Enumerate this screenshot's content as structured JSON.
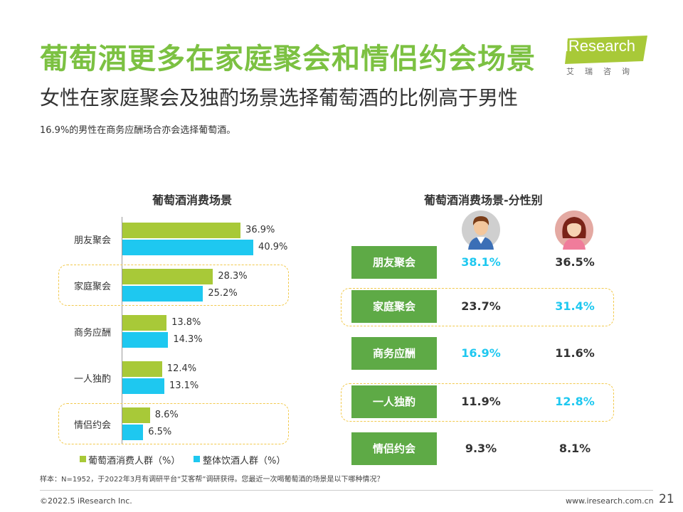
{
  "header": {
    "title": "葡萄酒更多在家庭聚会和情侣约会场景",
    "subtitle": "女性在家庭聚会及独酌场景选择葡萄酒的比例高于男性",
    "note": "16.9%的男性在商务应酬场合亦会选择葡萄酒。"
  },
  "logo": {
    "brand": "iResearch",
    "sub": "艾瑞咨询"
  },
  "colors": {
    "title_green": "#7cc142",
    "bar_green": "#a8c938",
    "bar_blue": "#1ec8f0",
    "box_green": "#5eaa46",
    "highlight": "#1ec8f0",
    "dash": "#f2c94c"
  },
  "chart_data": [
    {
      "type": "bar",
      "orientation": "horizontal",
      "title": "葡萄酒消费场景",
      "categories": [
        "朋友聚会",
        "家庭聚会",
        "商务应酬",
        "一人独酌",
        "情侣约会"
      ],
      "series": [
        {
          "name": "葡萄酒消费人群（%）",
          "values": [
            36.9,
            28.3,
            13.8,
            12.4,
            8.6
          ],
          "labels": [
            "36.9%",
            "28.3%",
            "13.8%",
            "12.4%",
            "8.6%"
          ],
          "color": "#a8c938"
        },
        {
          "name": "整体饮酒人群（%）",
          "values": [
            40.9,
            25.2,
            14.3,
            13.1,
            6.5
          ],
          "labels": [
            "40.9%",
            "25.2%",
            "14.3%",
            "13.1%",
            "6.5%"
          ],
          "color": "#1ec8f0"
        }
      ],
      "highlighted_categories": [
        "家庭聚会",
        "情侣约会"
      ],
      "legend": "bottom",
      "xlim": [
        0,
        45
      ]
    },
    {
      "type": "table",
      "title": "葡萄酒消费场景-分性别",
      "columns": [
        "male-icon",
        "female-icon"
      ],
      "rows": [
        {
          "label": "朋友聚会",
          "male": "38.1%",
          "female": "36.5%",
          "highlight": "male"
        },
        {
          "label": "家庭聚会",
          "male": "23.7%",
          "female": "31.4%",
          "highlight": "female"
        },
        {
          "label": "商务应酬",
          "male": "16.9%",
          "female": "11.6%",
          "highlight": "male"
        },
        {
          "label": "一人独酌",
          "male": "11.9%",
          "female": "12.8%",
          "highlight": "female"
        },
        {
          "label": "情侣约会",
          "male": "9.3%",
          "female": "8.1%",
          "highlight": ""
        }
      ],
      "highlighted_rows": [
        "家庭聚会",
        "一人独酌"
      ]
    }
  ],
  "footer": {
    "source": "样本：N=1952，于2022年3月有调研平台“艾客帮”调研获得。您最近一次喝葡萄酒的场景是以下哪种情况？",
    "copyright": "©2022.5 iResearch Inc.",
    "website": "www.iresearch.com.cn",
    "page": "21"
  }
}
